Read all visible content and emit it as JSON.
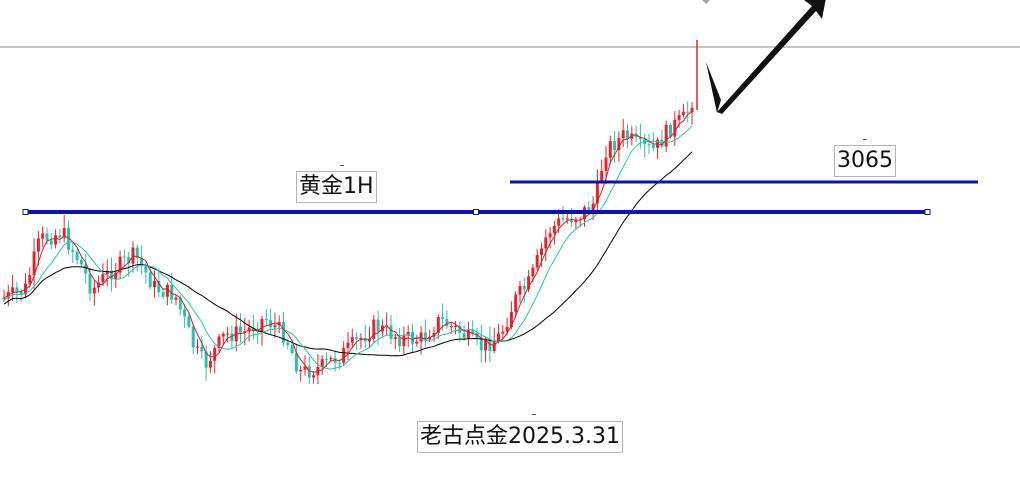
{
  "chart_data": {
    "type": "candlestick",
    "title": "黄金1H",
    "annotations": {
      "price_level": "3065",
      "watermark": "老古点金2025.3.31"
    },
    "colors": {
      "up": "#e0262b",
      "down": "#2fbfb0",
      "level_line": "#0a14a8",
      "ma_fast": "#c6262b",
      "ma_mid": "#2fbfb0",
      "ma_slow": "#000000",
      "arrow": "#111111"
    },
    "grid": false,
    "legend": "none"
  }
}
